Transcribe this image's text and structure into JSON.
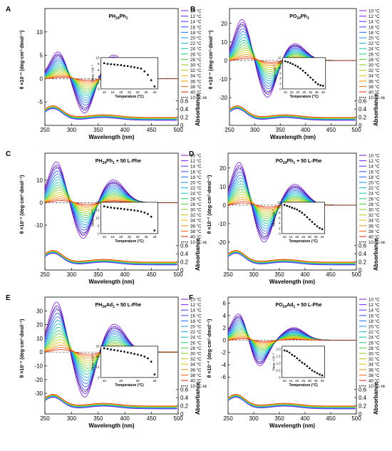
{
  "figure": {
    "panels": [
      {
        "letter": "A",
        "title": "PH",
        "title_sub": "24",
        "title_tail": "Ph",
        "title_sub2": "1",
        "title_extra": "",
        "ylabel": "θ ×10⁻³ (deg·cm²·dmol⁻¹)",
        "yticks": [
          "-5",
          "0",
          "5",
          "10"
        ],
        "legend": [
          "10 °C",
          "12 °C",
          "14 °C",
          "16 °C",
          "18 °C",
          "20 °C",
          "22 °C",
          "24 °C",
          "26 °C",
          "28 °C",
          "30 °C",
          "32 °C",
          "34 °C",
          "36 °C",
          "38 °C",
          "40 °C",
          "10 °C-re"
        ],
        "inset_xticks": [
          "10",
          "15",
          "20",
          "25",
          "30",
          "35",
          "40"
        ],
        "inset_yticks": [
          "0",
          "2",
          "4",
          "6",
          "8",
          "10"
        ],
        "inset_ylabel": "θmax ×10⁻³"
      },
      {
        "letter": "B",
        "title": "PO",
        "title_sub": "24",
        "title_tail": "Ph",
        "title_sub2": "1",
        "title_extra": "",
        "ylabel": "θ ×10⁻³ (deg·cm²·dmol⁻¹)",
        "yticks": [
          "-20",
          "-10",
          "0",
          "10",
          "20"
        ],
        "legend": [
          "10 °C",
          "12 °C",
          "14 °C",
          "16 °C",
          "18 °C",
          "20 °C",
          "22 °C",
          "24 °C",
          "26 °C",
          "28 °C",
          "30 °C",
          "32 °C",
          "34 °C",
          "36 °C",
          "38 °C",
          "40 °C",
          "10 °C-re"
        ],
        "inset_xticks": [
          "10",
          "15",
          "20",
          "25",
          "30",
          "35",
          "40"
        ],
        "inset_yticks": [
          "0",
          "2",
          "4",
          "6",
          "8",
          "10",
          "12"
        ],
        "inset_ylabel": "θmax ×10⁻³"
      },
      {
        "letter": "C",
        "title": "PH",
        "title_sub": "24",
        "title_tail": "Ph",
        "title_sub2": "1",
        "title_extra": " + 50 L-Phe",
        "ylabel": "θ ×10⁻³ (deg·cm²·dmol⁻¹)",
        "yticks": [
          "-10",
          "0",
          "10"
        ],
        "legend": [
          "10 °C",
          "12 °C",
          "14 °C",
          "16 °C",
          "18 °C",
          "20 °C",
          "22 °C",
          "24 °C",
          "26 °C",
          "28 °C",
          "30 °C",
          "32 °C",
          "34 °C",
          "36 °C",
          "38 °C",
          "40 °C",
          "10 °C-re"
        ],
        "inset_xticks": [
          "10",
          "15",
          "20",
          "25",
          "30",
          "35",
          "40"
        ],
        "inset_yticks": [
          "0",
          "5",
          "10",
          "15",
          "20"
        ],
        "inset_ylabel": "θmax ×10⁻³"
      },
      {
        "letter": "D",
        "title": "PO",
        "title_sub": "24",
        "title_tail": "Ph",
        "title_sub2": "1",
        "title_extra": " + 50 L-Phe",
        "ylabel": "θ ×10⁻³ (deg·cm²·dmol⁻¹)",
        "yticks": [
          "-20",
          "-10",
          "0",
          "10",
          "20"
        ],
        "legend": [
          "10 °C",
          "12 °C",
          "14 °C",
          "16 °C",
          "18 °C",
          "20 °C",
          "22 °C",
          "24 °C",
          "26 °C",
          "28 °C",
          "30 °C",
          "32 °C",
          "34 °C",
          "36 °C",
          "38 °C",
          "40 °C",
          "10 °C-re"
        ],
        "inset_xticks": [
          "10",
          "15",
          "20",
          "25",
          "30",
          "35",
          "40"
        ],
        "inset_yticks": [
          "0",
          "2",
          "4",
          "6",
          "8",
          "10",
          "12"
        ],
        "inset_ylabel": "θmax ×10⁻³"
      },
      {
        "letter": "E",
        "title": "PH",
        "title_sub": "24",
        "title_tail": "Ad",
        "title_sub2": "1",
        "title_extra": " + 50 L-Phe",
        "ylabel": "θ ×10⁻³ (deg·cm²·dmol⁻¹)",
        "yticks": [
          "-30",
          "-20",
          "-10",
          "0",
          "10",
          "20",
          "30"
        ],
        "legend": [
          "10 °C",
          "12 °C",
          "14 °C",
          "16 °C",
          "18 °C",
          "20 °C",
          "22 °C",
          "24 °C",
          "26 °C",
          "28 °C",
          "30 °C",
          "32 °C",
          "34 °C",
          "36 °C",
          "38 °C",
          "40 °C",
          "10 °C-re"
        ],
        "inset_xticks": [
          "10",
          "20",
          "30",
          "40"
        ],
        "inset_yticks": [
          "0",
          "10",
          "20",
          "30"
        ],
        "inset_ylabel": "θmax ×10⁻³"
      },
      {
        "letter": "F",
        "title": "PO",
        "title_sub": "24",
        "title_tail": "Ad",
        "title_sub2": "1",
        "title_extra": " + 50 L-Phe",
        "ylabel": "θ ×10⁻³ (deg·cm²·dmol⁻¹)",
        "yticks": [
          "-6",
          "-4",
          "-2",
          "0",
          "2",
          "4",
          "6"
        ],
        "legend": [
          "10 °C",
          "12 °C",
          "14 °C",
          "16 °C",
          "18 °C",
          "20 °C",
          "22 °C",
          "24 °C",
          "26 °C",
          "28 °C",
          "30 °C",
          "32 °C",
          "34 °C",
          "36 °C",
          "38 °C",
          "40 °C",
          "10 °C-re"
        ],
        "inset_xticks": [
          "10",
          "15",
          "20",
          "25",
          "30",
          "35",
          "40"
        ],
        "inset_yticks": [
          "0",
          "0.5",
          "1.0",
          "1.5",
          "2.0"
        ],
        "inset_ylabel": "θmax ×10⁻³"
      }
    ],
    "common": {
      "xlabel": "Wavelength (nm)",
      "xticks": [
        "250",
        "300",
        "350",
        "400",
        "450",
        "500"
      ],
      "abs_label": "Absorbance",
      "abs_ticks": [
        "0",
        "0.2",
        "0.4",
        "0.6"
      ],
      "inset_xlabel": "Temperature (°C)"
    }
  },
  "chart_data": [
    {
      "type": "line",
      "panel": "A",
      "title": "PH24Ph1",
      "xlabel": "Wavelength (nm)",
      "ylabel": "θ ×10⁻³ (deg·cm²·dmol⁻¹)",
      "xlim": [
        250,
        500
      ],
      "ylim": [
        -10,
        15
      ],
      "cd_model": {
        "p1": [
          275,
          5.7
        ],
        "n": [
          325,
          -7.5
        ],
        "p2": [
          378,
          5.0
        ]
      },
      "inset": {
        "xlabel": "Temperature (°C)",
        "ylabel": "θmax ×10⁻³",
        "xlim": [
          8,
          42
        ],
        "ylim": [
          0,
          10
        ],
        "x": [
          10,
          12,
          14,
          16,
          18,
          20,
          22,
          24,
          26,
          28,
          30,
          32,
          34,
          36,
          38,
          40
        ],
        "y": [
          8.2,
          8.0,
          7.9,
          7.8,
          7.7,
          7.6,
          7.4,
          7.3,
          7.1,
          6.9,
          6.7,
          6.5,
          5.6,
          4.5,
          2.8,
          0.8
        ]
      }
    },
    {
      "type": "line",
      "panel": "B",
      "title": "PO24Ph1",
      "xlabel": "Wavelength (nm)",
      "ylabel": "θ ×10⁻³ (deg·cm²·dmol⁻¹)",
      "xlim": [
        250,
        500
      ],
      "ylim": [
        -35,
        28
      ],
      "cd_model": {
        "p1": [
          275,
          22
        ],
        "n": [
          325,
          -20
        ],
        "p2": [
          378,
          9
        ]
      },
      "inset": {
        "xlabel": "Temperature (°C)",
        "ylabel": "θmax ×10⁻³",
        "xlim": [
          8,
          42
        ],
        "ylim": [
          0,
          12
        ],
        "x": [
          10,
          12,
          14,
          16,
          18,
          20,
          22,
          24,
          26,
          28,
          30,
          32,
          34,
          36,
          38,
          40
        ],
        "y": [
          10.6,
          10.3,
          9.9,
          9.5,
          9.0,
          8.5,
          7.8,
          7.0,
          6.2,
          5.3,
          4.4,
          3.5,
          2.6,
          1.8,
          1.4,
          1.2
        ]
      }
    },
    {
      "type": "line",
      "panel": "C",
      "title": "PH24Ph1 + 50 L-Phe",
      "xlabel": "Wavelength (nm)",
      "ylabel": "θ ×10⁻³ (deg·cm²·dmol⁻¹)",
      "xlim": [
        250,
        500
      ],
      "ylim": [
        -30,
        22
      ],
      "cd_model": {
        "p1": [
          272,
          18
        ],
        "n": [
          322,
          -16
        ],
        "p2": [
          378,
          10
        ]
      },
      "inset": {
        "xlabel": "Temperature (°C)",
        "ylabel": "θmax ×10⁻³",
        "xlim": [
          8,
          42
        ],
        "ylim": [
          0,
          20
        ],
        "x": [
          10,
          12,
          14,
          16,
          18,
          20,
          22,
          24,
          26,
          28,
          30,
          32,
          34,
          36,
          38,
          40
        ],
        "y": [
          17.4,
          16.9,
          16.6,
          16.3,
          16.1,
          15.9,
          15.6,
          15.3,
          15.1,
          14.8,
          14.5,
          14.0,
          13.4,
          12.5,
          10.8,
          2.0
        ]
      }
    },
    {
      "type": "line",
      "panel": "D",
      "title": "PO24Ph1 + 50 L-Phe",
      "xlabel": "Wavelength (nm)",
      "ylabel": "θ ×10⁻³ (deg·cm²·dmol⁻¹)",
      "xlim": [
        250,
        500
      ],
      "ylim": [
        -35,
        28
      ],
      "cd_model": {
        "p1": [
          272,
          23
        ],
        "n": [
          320,
          -20
        ],
        "p2": [
          380,
          11
        ]
      },
      "inset": {
        "xlabel": "Temperature (°C)",
        "ylabel": "θmax ×10⁻³",
        "xlim": [
          8,
          42
        ],
        "ylim": [
          0,
          12
        ],
        "x": [
          10,
          12,
          14,
          16,
          18,
          20,
          22,
          24,
          26,
          28,
          30,
          32,
          34,
          36,
          38,
          40
        ],
        "y": [
          11.0,
          10.6,
          10.3,
          9.9,
          9.6,
          9.2,
          8.6,
          8.0,
          7.2,
          6.3,
          5.4,
          4.5,
          3.6,
          2.8,
          2.1,
          1.7
        ]
      }
    },
    {
      "type": "line",
      "panel": "E",
      "title": "PH24Ad1 + 50 L-Phe",
      "xlabel": "Wavelength (nm)",
      "ylabel": "θ ×10⁻³ (deg·cm²·dmol⁻¹)",
      "xlim": [
        250,
        500
      ],
      "ylim": [
        -45,
        40
      ],
      "cd_model": {
        "p1": [
          272,
          36
        ],
        "n": [
          325,
          -33
        ],
        "p2": [
          380,
          20
        ]
      },
      "inset": {
        "xlabel": "Temperature (°C)",
        "ylabel": "θmax ×10⁻³",
        "xlim": [
          8,
          42
        ],
        "ylim": [
          0,
          30
        ],
        "x": [
          10,
          12,
          14,
          16,
          18,
          20,
          22,
          24,
          26,
          28,
          30,
          32,
          34,
          36,
          38,
          40
        ],
        "y": [
          28.0,
          27.4,
          26.8,
          26.3,
          25.8,
          25.2,
          24.7,
          24.0,
          23.4,
          22.6,
          21.9,
          21.1,
          20.0,
          18.4,
          15.2,
          3.0
        ]
      }
    },
    {
      "type": "line",
      "panel": "F",
      "title": "PO24Ad1 + 50 L-Phe",
      "xlabel": "Wavelength (nm)",
      "ylabel": "θ ×10⁻³ (deg·cm²·dmol⁻¹)",
      "xlim": [
        250,
        500
      ],
      "ylim": [
        -12,
        7
      ],
      "cd_model": {
        "p1": [
          272,
          4.5
        ],
        "n": [
          310,
          -4.3
        ],
        "p2": [
          378,
          2.0
        ]
      },
      "inset": {
        "xlabel": "Temperature (°C)",
        "ylabel": "θmax ×10⁻³",
        "xlim": [
          8,
          42
        ],
        "ylim": [
          0,
          2.2
        ],
        "x": [
          10,
          12,
          14,
          16,
          18,
          20,
          22,
          24,
          26,
          28,
          30,
          32,
          34,
          36,
          38,
          40
        ],
        "y": [
          1.9,
          1.85,
          1.75,
          1.6,
          1.5,
          1.35,
          1.2,
          1.05,
          0.95,
          0.8,
          0.65,
          0.5,
          0.4,
          0.3,
          0.22,
          0.15
        ]
      }
    }
  ],
  "colors": {
    "series": [
      "#8b2fc9",
      "#7a2ff0",
      "#5a3cf2",
      "#3f58f2",
      "#2f78f2",
      "#279ae8",
      "#21b9d2",
      "#20c9aa",
      "#2fcf7a",
      "#5ed14a",
      "#8fd22d",
      "#bcd11f",
      "#e2c31b",
      "#f09b1b",
      "#ef6b1c",
      "#e23b1f"
    ],
    "reheat": "#000000",
    "zero_line": "#555555"
  }
}
